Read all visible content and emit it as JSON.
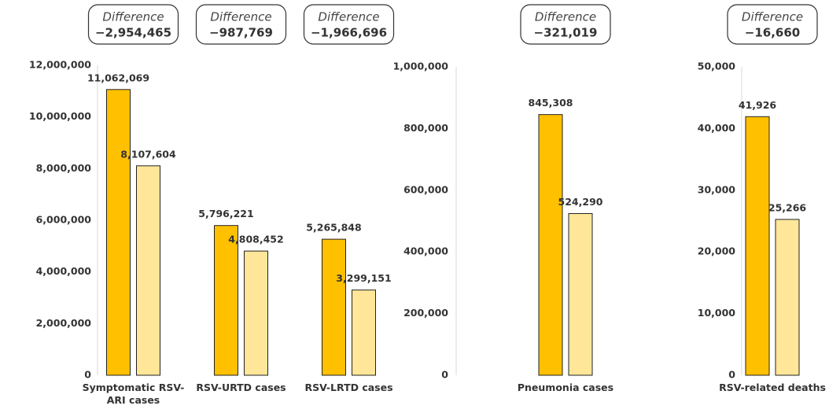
{
  "chart_data": [
    {
      "type": "bar",
      "categories": [
        "Symptomatic RSV-ARI cases",
        "RSV-URTD cases",
        "RSV-LRTD cases"
      ],
      "series": [
        {
          "color": "#FFC000",
          "values": [
            11062069,
            5796221,
            5265848
          ],
          "value_labels": [
            "11,062,069",
            "5,796,221",
            "5,265,848"
          ]
        },
        {
          "color": "#FFE699",
          "values": [
            8107604,
            4808452,
            3299151
          ],
          "value_labels": [
            "8,107,604",
            "4,808,452",
            "3,299,151"
          ]
        }
      ],
      "ylim": [
        0,
        12000000
      ],
      "yticks": [
        0,
        {
          "value": 2000000,
          "label": "2,000,000"
        },
        {
          "value": 4000000,
          "label": "4,000,000"
        },
        {
          "value": 6000000,
          "label": "6,000,000"
        },
        {
          "value": 8000000,
          "label": "8,000,000"
        },
        {
          "value": 10000000,
          "label": "10,000,000"
        },
        {
          "value": 12000000,
          "label": "12,000,000"
        }
      ],
      "grid": false,
      "annotation_title": "Difference",
      "annotations": [
        "−2,954,465",
        "−987,769",
        "−1,966,696"
      ]
    },
    {
      "type": "bar",
      "categories": [
        "Pneumonia cases"
      ],
      "series": [
        {
          "color": "#FFC000",
          "values": [
            845308
          ],
          "value_labels": [
            "845,308"
          ]
        },
        {
          "color": "#FFE699",
          "values": [
            524290
          ],
          "value_labels": [
            "524,290"
          ]
        }
      ],
      "ylim": [
        0,
        1000000
      ],
      "yticks": [
        0,
        {
          "value": 200000,
          "label": "200,000"
        },
        {
          "value": 400000,
          "label": "400,000"
        },
        {
          "value": 600000,
          "label": "600,000"
        },
        {
          "value": 800000,
          "label": "800,000"
        },
        {
          "value": 1000000,
          "label": "1,000,000"
        }
      ],
      "grid": false,
      "annotation_title": "Difference",
      "annotations": [
        "−321,019"
      ]
    },
    {
      "type": "bar",
      "categories": [
        "RSV-related deaths"
      ],
      "series": [
        {
          "color": "#FFC000",
          "values": [
            41926
          ],
          "value_labels": [
            "41,926"
          ]
        },
        {
          "color": "#FFE699",
          "values": [
            25266
          ],
          "value_labels": [
            "25,266"
          ]
        }
      ],
      "ylim": [
        0,
        50000
      ],
      "yticks": [
        0,
        {
          "value": 10000,
          "label": "10,000"
        },
        {
          "value": 20000,
          "label": "20,000"
        },
        {
          "value": 30000,
          "label": "30,000"
        },
        {
          "value": 40000,
          "label": "40,000"
        },
        {
          "value": 50000,
          "label": "50,000"
        }
      ],
      "grid": false,
      "annotation_title": "Difference",
      "annotations": [
        "−16,660"
      ]
    }
  ]
}
